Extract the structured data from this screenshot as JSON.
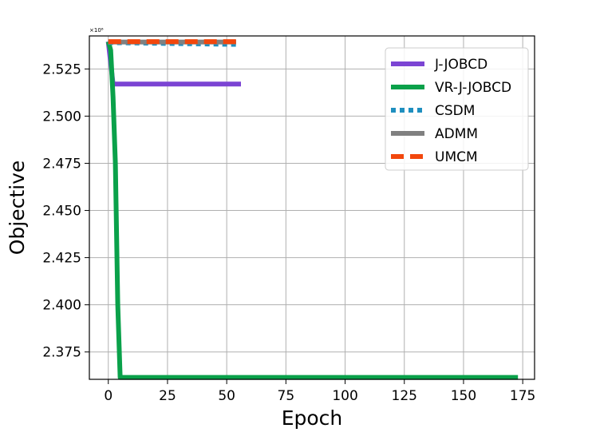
{
  "chart_data": {
    "type": "line",
    "title": "",
    "xlabel": "Epoch",
    "ylabel": "Objective",
    "y_scale_label": "×10⁶",
    "xlim": [
      -8,
      180
    ],
    "ylim": [
      2.3605,
      2.5425
    ],
    "x_ticks": [
      0,
      25,
      50,
      75,
      100,
      125,
      150,
      175
    ],
    "x_tick_labels": [
      "0",
      "25",
      "50",
      "75",
      "100",
      "125",
      "150",
      "175"
    ],
    "y_ticks": [
      2.375,
      2.4,
      2.425,
      2.45,
      2.475,
      2.5,
      2.525
    ],
    "y_tick_labels": [
      "2.375",
      "2.400",
      "2.425",
      "2.450",
      "2.475",
      "2.500",
      "2.525"
    ],
    "grid": true,
    "legend_position": "top-right",
    "series": [
      {
        "name": "J-JOBCD",
        "color": "#7b44d3",
        "style": "solid",
        "x": [
          0,
          2,
          56
        ],
        "y": [
          2.5395,
          2.517,
          2.517
        ]
      },
      {
        "name": "VR-J-JOBCD",
        "color": "#0aa14a",
        "style": "solid",
        "x": [
          0,
          1,
          2,
          3,
          4,
          5,
          173
        ],
        "y": [
          2.5395,
          2.535,
          2.51,
          2.475,
          2.4,
          2.3615,
          2.3615
        ]
      },
      {
        "name": "CSDM",
        "color": "#1f8fbf",
        "style": "dotted",
        "x": [
          0,
          55
        ],
        "y": [
          2.539,
          2.538
        ]
      },
      {
        "name": "ADMM",
        "color": "#808080",
        "style": "solid",
        "x": [
          0,
          54
        ],
        "y": [
          2.5393,
          2.5393
        ]
      },
      {
        "name": "UMCM",
        "color": "#f2470d",
        "style": "dashed",
        "x": [
          0,
          54
        ],
        "y": [
          2.5395,
          2.5395
        ]
      }
    ]
  }
}
